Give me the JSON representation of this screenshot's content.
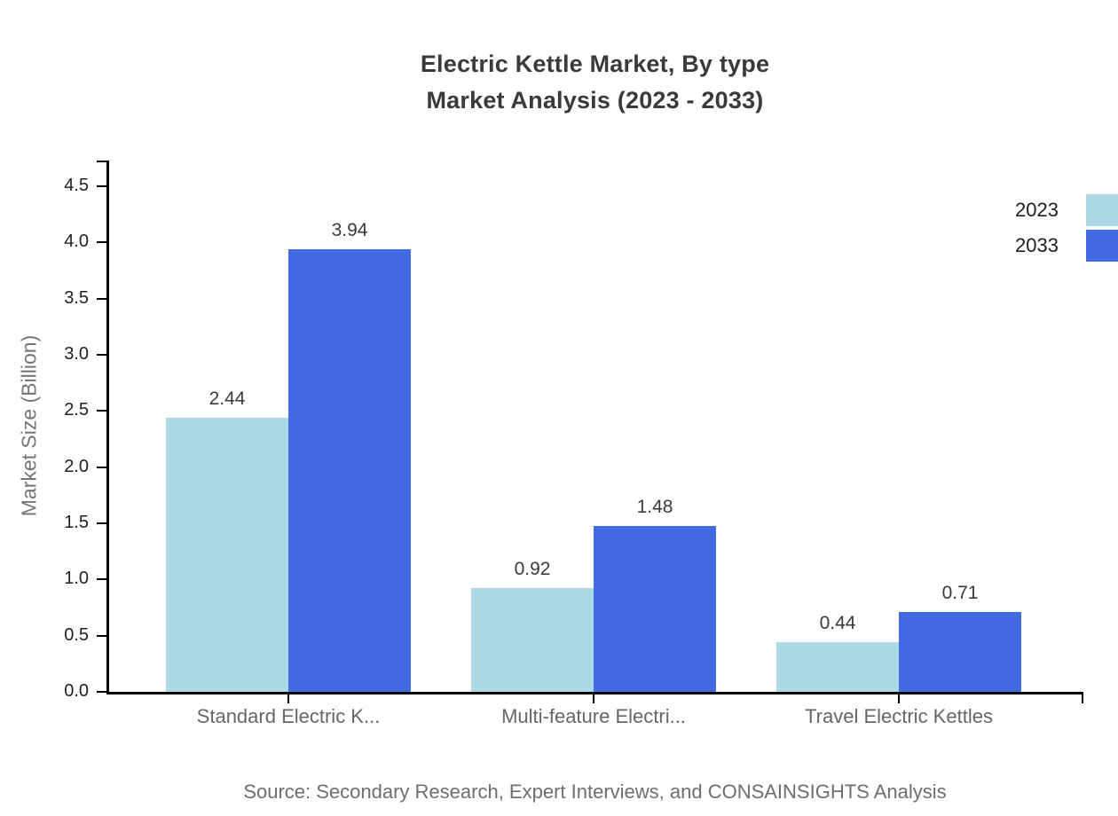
{
  "title": {
    "line1": "Electric Kettle Market, By type",
    "line2": "Market Analysis (2023 - 2033)"
  },
  "source": "Source: Secondary Research, Expert Interviews, and CONSAINSIGHTS Analysis",
  "colors": {
    "series_2023": "#ADD8E6",
    "series_2033": "#4169E1",
    "axis": "#000000",
    "title_text": "#3a3a3a",
    "tick_text": "#1f1f1f",
    "category_text": "#666666",
    "muted_text": "#757575"
  },
  "chart_data": {
    "type": "bar",
    "title": "Electric Kettle Market, By type Market Analysis (2023 - 2033)",
    "xlabel": "",
    "ylabel": "Market Size (Billion)",
    "categories": [
      "Standard Electric K...",
      "Multi-feature Electri...",
      "Travel Electric Kettles"
    ],
    "series": [
      {
        "name": "2023",
        "color": "#ADD8E6",
        "values": [
          2.44,
          0.92,
          0.44
        ]
      },
      {
        "name": "2033",
        "color": "#4169E1",
        "values": [
          3.94,
          1.48,
          0.71
        ]
      }
    ],
    "ylim": [
      0,
      4.5
    ],
    "yticks": [
      0.0,
      0.5,
      1.0,
      1.5,
      2.0,
      2.5,
      3.0,
      3.5,
      4.0,
      4.5
    ],
    "value_labels": true,
    "grid": false,
    "legend_position": "top-right"
  }
}
